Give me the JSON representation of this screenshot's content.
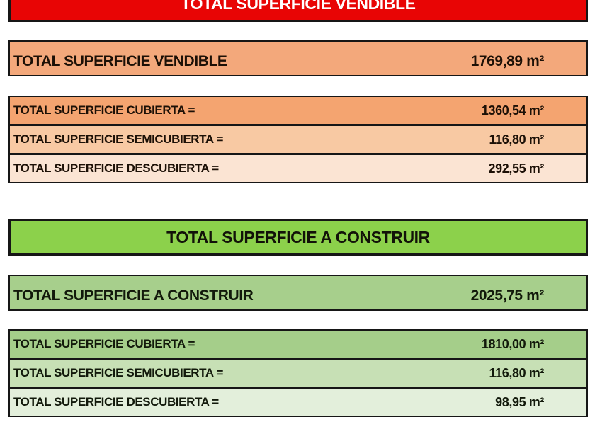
{
  "border_color": "#161616",
  "sections": [
    {
      "id": "vendible",
      "banner": {
        "label": "TOTAL SUPERFICIE VENDIBLE",
        "bg": "#E80505",
        "text_color": "#FFFFFF"
      },
      "summary": {
        "label": "TOTAL SUPERFICIE VENDIBLE",
        "value": "1769,89 m²",
        "bg": "#F3A87B",
        "text_color": "#1C1006"
      },
      "rows": [
        {
          "label": "TOTAL SUPERFICIE CUBIERTA =",
          "value": "1360,54 m²",
          "bg": "#F4A470",
          "text_color": "#1C1006"
        },
        {
          "label": "TOTAL SUPERFICIE SEMICUBIERTA =",
          "value": "116,80 m²",
          "bg": "#F8C9A3",
          "text_color": "#1C1006"
        },
        {
          "label": "TOTAL SUPERFICIE DESCUBIERTA =",
          "value": "292,55 m²",
          "bg": "#FBE4D3",
          "text_color": "#1C1006"
        }
      ]
    },
    {
      "id": "construir",
      "banner": {
        "label": "TOTAL SUPERFICIE A CONSTRUIR",
        "bg": "#8CD14B",
        "text_color": "#121209"
      },
      "summary": {
        "label": "TOTAL SUPERFICIE A CONSTRUIR",
        "value": "2025,75 m²",
        "bg": "#A7CF8C",
        "text_color": "#12190B"
      },
      "rows": [
        {
          "label": "TOTAL SUPERFICIE CUBIERTA =",
          "value": "1810,00 m²",
          "bg": "#A5CE8A",
          "text_color": "#12190B"
        },
        {
          "label": "TOTAL SUPERFICIE SEMICUBIERTA =",
          "value": "116,80 m²",
          "bg": "#C7E0B5",
          "text_color": "#12190B"
        },
        {
          "label": "TOTAL SUPERFICIE DESCUBIERTA =",
          "value": "98,95 m²",
          "bg": "#E3EFDB",
          "text_color": "#12190B"
        }
      ]
    }
  ]
}
